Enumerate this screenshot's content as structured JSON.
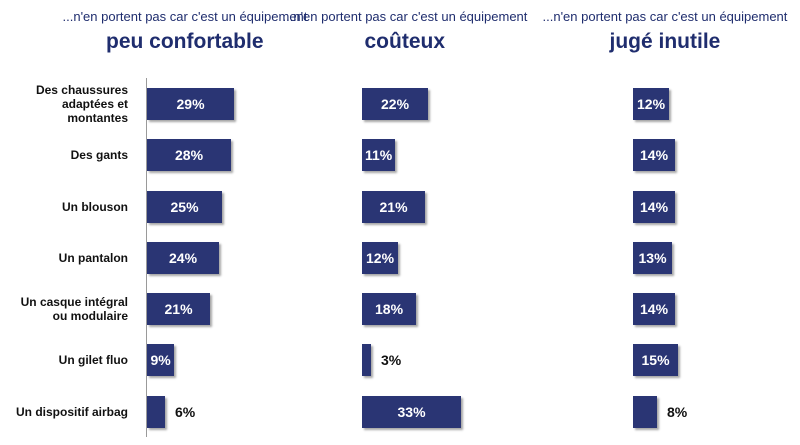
{
  "chart_data": {
    "type": "bar",
    "orientation": "horizontal",
    "unit": "%",
    "categories": [
      "Des chaussures adaptées et montantes",
      "Des gants",
      "Un blouson",
      "Un pantalon",
      "Un casque intégral ou modulaire",
      "Un gilet fluo",
      "Un dispositif airbag"
    ],
    "panels": [
      {
        "prefix": "...n'en portent pas car c'est un équipement",
        "title": "peu confortable",
        "values": [
          29,
          28,
          25,
          24,
          21,
          9,
          6
        ]
      },
      {
        "prefix": "...n'en portent pas car c'est un équipement",
        "title": "coûteux",
        "values": [
          22,
          11,
          21,
          12,
          18,
          3,
          33
        ]
      },
      {
        "prefix": "...n'en portent pas car c'est un équipement",
        "title": "jugé inutile",
        "values": [
          12,
          14,
          14,
          13,
          14,
          15,
          8
        ]
      }
    ],
    "bar_color": "#2a3574",
    "header_color": "#1f2d6e"
  }
}
